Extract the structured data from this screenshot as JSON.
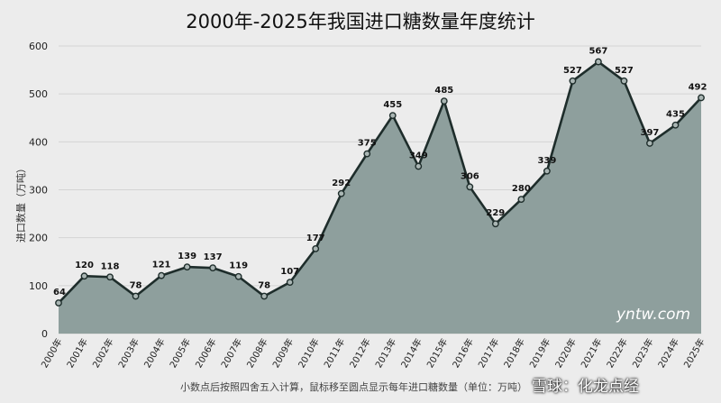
{
  "chart_data": {
    "type": "area",
    "title": "2000年-2025年我国进口糖数量年度统计",
    "ylabel": "进口数量（万吨）",
    "xlabel": "",
    "ylim": [
      0,
      600
    ],
    "yticks": [
      0,
      100,
      200,
      300,
      400,
      500,
      600
    ],
    "grid": true,
    "categories": [
      "2000年",
      "2001年",
      "2002年",
      "2003年",
      "2004年",
      "2005年",
      "2006年",
      "2007年",
      "2008年",
      "2009年",
      "2010年",
      "2011年",
      "2012年",
      "2013年",
      "2014年",
      "2015年",
      "2016年",
      "2017年",
      "2018年",
      "2019年",
      "2020年",
      "2021年",
      "2022年",
      "2023年",
      "2024年",
      "2025年"
    ],
    "series": [
      {
        "values": [
          64,
          120,
          118,
          78,
          121,
          139,
          137,
          119,
          78,
          107,
          177,
          292,
          375,
          455,
          349,
          485,
          306,
          229,
          280,
          339,
          527,
          567,
          527,
          397,
          435,
          492
        ]
      }
    ],
    "data_labels": [
      "64",
      "120",
      "118",
      "78",
      "121",
      "139",
      "137",
      "119",
      "78",
      "107",
      "177",
      "292",
      "375",
      "455",
      "349",
      "485",
      "306",
      "229",
      "280",
      "339",
      "527",
      "567",
      "527",
      "397",
      "435",
      "492"
    ],
    "colors": {
      "fill": "#8e9f9d",
      "line": "#1e2d2b",
      "grid": "#d4d4d4",
      "background": "#ececec"
    }
  },
  "watermark": "yntw.com",
  "footnote": "小数点后按照四舍五入计算，鼠标移至圆点显示每年进口糖数量（单位：万吨）",
  "brand": "雪球：化龙点经"
}
